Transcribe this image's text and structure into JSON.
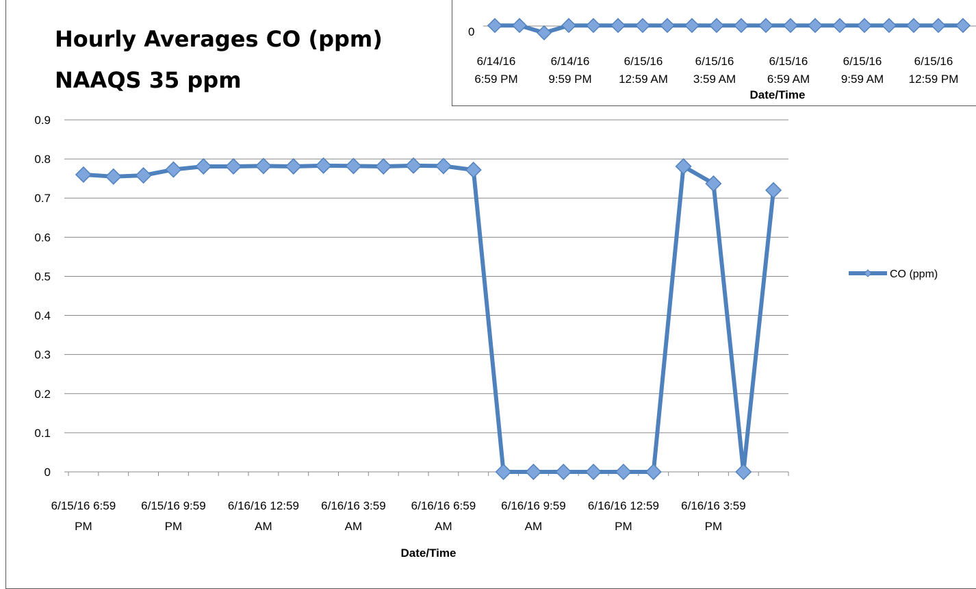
{
  "main_chart": {
    "title_line1": "Hourly Averages CO (ppm)",
    "title_line2": "NAAQS 35 ppm"
  },
  "inset_chart": {},
  "colors": {
    "line": "#4f81bd",
    "marker_fill": "#7fa6dc",
    "marker_stroke": "#4f81bd",
    "grid": "#888888"
  },
  "chart_data": [
    {
      "type": "line",
      "title": "Hourly Averages CO (ppm) NAAQS 35 ppm",
      "xlabel": "Date/Time",
      "ylabel": "",
      "ylim": [
        0,
        0.9
      ],
      "yticks": [
        "0",
        "0.1",
        "0.2",
        "0.3",
        "0.4",
        "0.5",
        "0.6",
        "0.7",
        "0.8",
        "0.9"
      ],
      "x_tick_labels": [
        [
          "6/15/16 6:59",
          "PM"
        ],
        [
          "6/15/16 9:59",
          "PM"
        ],
        [
          "6/16/16 12:59",
          "AM"
        ],
        [
          "6/16/16 3:59",
          "AM"
        ],
        [
          "6/16/16 6:59",
          "AM"
        ],
        [
          "6/16/16 9:59",
          "AM"
        ],
        [
          "6/16/16 12:59",
          "PM"
        ],
        [
          "6/16/16 3:59",
          "PM"
        ]
      ],
      "grid": true,
      "legend_position": "right",
      "series": [
        {
          "name": "CO (ppm)",
          "values": [
            0.76,
            0.755,
            0.758,
            0.773,
            0.781,
            0.781,
            0.782,
            0.781,
            0.783,
            0.782,
            0.781,
            0.783,
            0.782,
            0.772,
            0,
            0,
            0,
            0,
            0,
            0,
            0.781,
            0.737,
            0,
            0.72
          ]
        }
      ]
    },
    {
      "type": "line",
      "xlabel": "Date/Time",
      "yticks_visible": [
        "0"
      ],
      "x_tick_labels": [
        [
          "6/14/16",
          "6:59 PM"
        ],
        [
          "6/14/16",
          "9:59 PM"
        ],
        [
          "6/15/16",
          "12:59 AM"
        ],
        [
          "6/15/16",
          "3:59 AM"
        ],
        [
          "6/15/16",
          "6:59 AM"
        ],
        [
          "6/15/16",
          "9:59 AM"
        ],
        [
          "6/15/16",
          "12:59 PM"
        ]
      ],
      "series": [
        {
          "values": [
            0.76,
            0.76,
            0,
            0.76,
            0.76,
            0.76,
            0.76,
            0.76,
            0.76,
            0.76,
            0.76,
            0.76,
            0.76,
            0.76,
            0.76,
            0.76,
            0.76,
            0.76,
            0.76,
            0.76
          ]
        }
      ]
    }
  ]
}
